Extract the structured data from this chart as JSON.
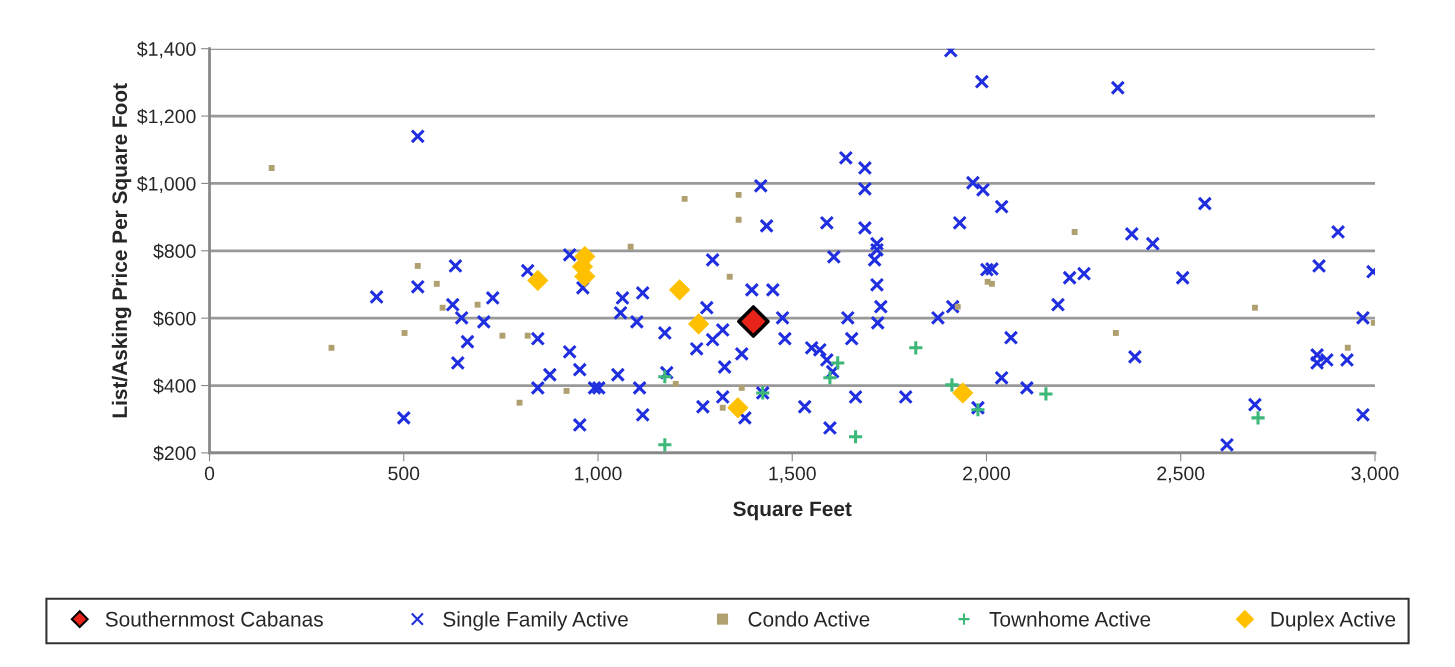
{
  "chart_data": {
    "type": "scatter",
    "xlabel": "Square Feet",
    "ylabel": "List/Asking Price Per Square Foot",
    "xlim": [
      0,
      3000
    ],
    "ylim": [
      200,
      1400
    ],
    "xticks": [
      0,
      500,
      {
        "value": 1000,
        "label": "1,000"
      },
      {
        "value": 1500,
        "label": "1,500"
      },
      {
        "value": 2000,
        "label": "2,000"
      },
      {
        "value": 2500,
        "label": "2,500"
      },
      {
        "value": 3000,
        "label": "3,000"
      }
    ],
    "yticks": [
      {
        "value": 200,
        "label": "$200"
      },
      {
        "value": 400,
        "label": "$400"
      },
      {
        "value": 600,
        "label": "$600"
      },
      {
        "value": 800,
        "label": "$800"
      },
      {
        "value": 1000,
        "label": "$1,000"
      },
      {
        "value": 1200,
        "label": "$1,200"
      },
      {
        "value": 1400,
        "label": "$1,400"
      }
    ],
    "grid": "y",
    "legend": "bottom",
    "series": [
      {
        "name": "Southernmost Cabanas",
        "color": "#e8231a",
        "marker": "diamond",
        "x": [
          1400
        ],
        "values": [
          590
        ]
      },
      {
        "name": "Single Family Active",
        "color": "#1f2fe0",
        "marker": "cross",
        "x": [
          430,
          536,
          633,
          626,
          649,
          729,
          706,
          664,
          639,
          819,
          845,
          927,
          953,
          876,
          845,
          991,
          953,
          500,
          927,
          961,
          536,
          1295,
          1607,
          1718,
          1712,
          1718,
          1728,
          1720,
          1396,
          1450,
          1280,
          1475,
          1481,
          1643,
          1653,
          1875,
          1913,
          2001,
          1115,
          1063,
          1058,
          1100,
          1172,
          1321,
          1295,
          1254,
          1370,
          1326,
          1550,
          1571,
          1589,
          1604,
          1051,
          1002,
          1107,
          1115,
          1270,
          1321,
          1378,
          1532,
          1597,
          1663,
          1792,
          1978,
          1177,
          1424,
          1908,
          1988,
          1638,
          1687,
          1687,
          1419,
          1434,
          1589,
          1687,
          1718,
          1965,
          1991,
          1931,
          2338,
          2039,
          2562,
          2374,
          2428,
          2905,
          2014,
          2214,
          2251,
          2184,
          2505,
          2856,
          2995,
          2969,
          2063,
          2382,
          2039,
          2104,
          2851,
          2876,
          2851,
          2928,
          2691,
          2969,
          2619
        ],
        "values": [
          663,
          693,
          755,
          640,
          601,
          660,
          589,
          530,
          467,
          741,
          539,
          500,
          447,
          432,
          393,
          393,
          283,
          304,
          788,
          690,
          1140,
          773,
          782,
          803,
          773,
          699,
          634,
          586,
          684,
          684,
          631,
          601,
          539,
          601,
          539,
          601,
          634,
          744,
          675,
          660,
          616,
          589,
          556,
          565,
          536,
          509,
          494,
          455,
          512,
          506,
          476,
          441,
          432,
          393,
          393,
          313,
          337,
          366,
          304,
          337,
          274,
          366,
          366,
          334,
          438,
          378,
          1394,
          1302,
          1076,
          1046,
          984,
          993,
          874,
          883,
          868,
          821,
          1002,
          981,
          883,
          1284,
          931,
          940,
          850,
          821,
          856,
          746,
          720,
          732,
          640,
          720,
          755,
          738,
          601,
          542,
          485,
          423,
          393,
          491,
          476,
          467,
          476,
          343,
          313,
          224
        ]
      },
      {
        "name": "Condo Active",
        "color": "#b0a070",
        "marker": "square",
        "x": [
          536,
          585,
          600,
          690,
          502,
          314,
          754,
          819,
          919,
          798,
          160,
          1084,
          1339,
          1926,
          1200,
          1370,
          1321,
          2003,
          1223,
          1362,
          1362,
          2227,
          2014,
          2691,
          2333,
          2997,
          2930
        ],
        "values": [
          755,
          702,
          631,
          640,
          556,
          512,
          548,
          548,
          384,
          349,
          1046,
          812,
          723,
          634,
          405,
          393,
          334,
          708,
          954,
          966,
          892,
          856,
          702,
          631,
          556,
          586,
          512
        ]
      },
      {
        "name": "Townhome Active",
        "color": "#3cb878",
        "marker": "plus",
        "x": [
          1172,
          1172,
          1424,
          1617,
          1597,
          1818,
          1663,
          1911,
          1978,
          2153,
          2699
        ],
        "values": [
          224,
          426,
          378,
          467,
          423,
          512,
          248,
          402,
          328,
          375,
          304
        ]
      },
      {
        "name": "Duplex Active",
        "color": "#ffc000",
        "marker": "diamond",
        "x": [
          845,
          966,
          966,
          960,
          1210,
          1259,
          1360,
          1939
        ],
        "values": [
          712,
          783,
          724,
          753,
          684,
          583,
          334,
          378
        ]
      }
    ]
  }
}
